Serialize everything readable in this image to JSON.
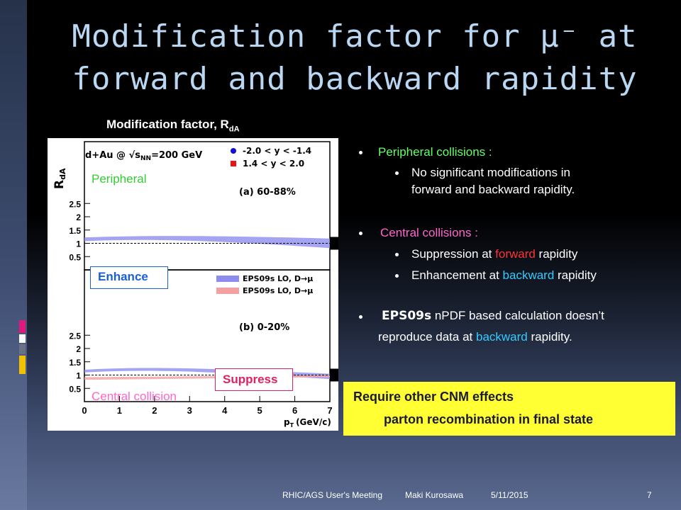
{
  "title": {
    "line1": "Modification factor for μ⁻ at",
    "line2": "forward and backward rapidity"
  },
  "plot_caption": {
    "text": "Modification factor, R",
    "sub": "dA"
  },
  "figure": {
    "ylabel": "R",
    "ylabel_sub": "dA",
    "xlabel": "p",
    "xlabel_sub": "T",
    "xlabel_unit": "(GeV/c)",
    "system_label": "d+Au @ √s",
    "system_sub": "NN",
    "system_energy": "=200 GeV",
    "panel_top": "(a) 60-88%",
    "panel_bottom": "(b) 0-20%",
    "legend_backward": "-2.0 < y < -1.4",
    "legend_forward": "1.4 < y < 2.0",
    "legend_eps_backward": "EPS09s LO, D→μ",
    "legend_eps_forward": "EPS09s LO, D→μ",
    "x_ticks": [
      "0",
      "1",
      "2",
      "3",
      "4",
      "5",
      "6",
      "7"
    ],
    "y_ticks_top": [
      "2.5",
      "2",
      "1.5",
      "1",
      "0.5"
    ],
    "y_ticks_bottom": [
      "2.5",
      "2",
      "1.5",
      "1",
      "0.5"
    ],
    "notes": {
      "peripheral": "Peripheral",
      "enhance": "Enhance",
      "suppress": "Suppress",
      "central": "Central collision"
    },
    "colors": {
      "backward": "#1010dd",
      "forward": "#ee1111",
      "note_green": "#33cc33",
      "note_pink": "#ff66cc",
      "note_blue": "#1a5fd6"
    }
  },
  "bullets": {
    "b1": "Peripheral collisions :",
    "b1_sub1": "No significant  modifications in",
    "b1_sub2": "forward and backward rapidity.",
    "b2": "Central collisions :",
    "b2_sub1_pre": "Suppression at ",
    "b2_sub1_hl": "forward",
    "b2_sub1_post": " rapidity",
    "b2_sub2_pre": "Enhancement at ",
    "b2_sub2_hl": "backward",
    "b2_sub2_post": " rapidity",
    "b3_bold": "EPS09s",
    "b3_rest": " nPDF based calculation doesn’t",
    "b3_line2_pre": "reproduce data at ",
    "b3_line2_hl": "backward",
    "b3_line2_post": " rapidity."
  },
  "callout": {
    "line1": "Require other CNM effects",
    "line2": "parton recombination in final state"
  },
  "footer": {
    "meeting": "RHIC/AGS User's Meeting",
    "author": "Maki Kurosawa",
    "date": "5/11/2015",
    "page": "7"
  }
}
